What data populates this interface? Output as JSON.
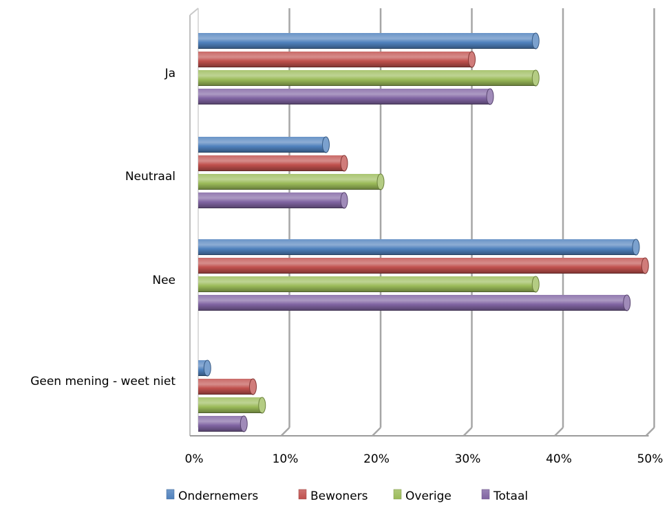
{
  "chart_data": {
    "type": "bar",
    "orientation": "horizontal",
    "style": "3d-cylinder",
    "categories": [
      "Ja",
      "Neutraal",
      "Nee",
      "Geen mening - weet niet"
    ],
    "series": [
      {
        "name": "Ondernemers",
        "color": "#4F81BD",
        "values": [
          37,
          14,
          48,
          1
        ]
      },
      {
        "name": "Bewoners",
        "color": "#C0504D",
        "values": [
          30,
          16,
          49,
          6
        ]
      },
      {
        "name": "Overige",
        "color": "#9BBB59",
        "values": [
          37,
          20,
          37,
          7
        ]
      },
      {
        "name": "Totaal",
        "color": "#8064A2",
        "values": [
          32,
          16,
          47,
          5
        ]
      }
    ],
    "xticks": [
      "0%",
      "10%",
      "20%",
      "30%",
      "40%",
      "50%"
    ],
    "xlim": [
      0,
      50
    ],
    "grid": true,
    "legend_position": "bottom",
    "title": "",
    "xlabel": "",
    "ylabel": ""
  }
}
